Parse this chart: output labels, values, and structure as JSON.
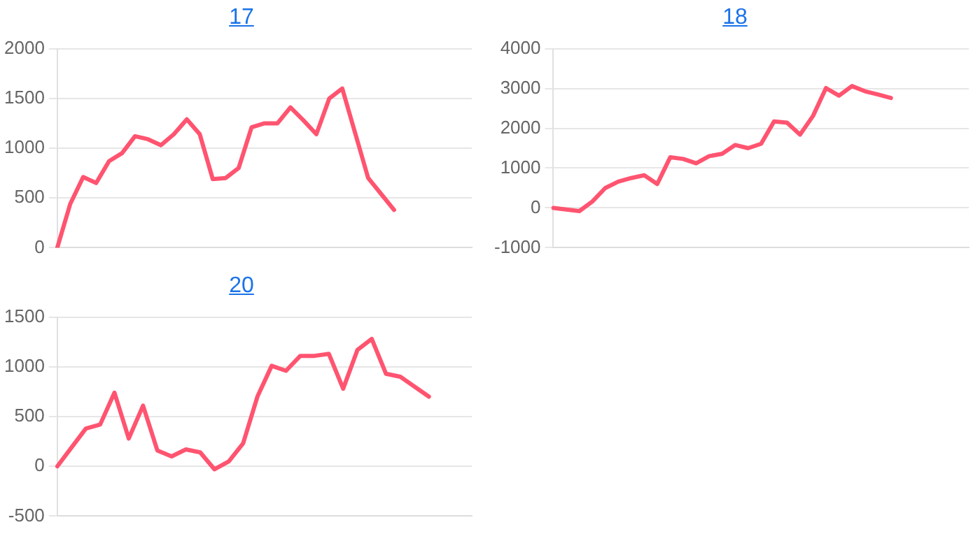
{
  "chart_data": [
    {
      "type": "line",
      "title": "17",
      "categories": [
        null,
        null,
        null,
        null,
        null,
        null,
        null,
        null,
        null,
        null,
        null,
        null,
        null,
        null,
        null,
        null,
        null,
        null,
        null,
        null,
        null,
        null,
        null,
        null,
        null,
        null,
        null,
        null,
        null,
        null,
        null,
        null,
        null
      ],
      "series": [
        {
          "color": "#ff5470",
          "values": [
            0,
            440,
            710,
            650,
            870,
            950,
            1120,
            1090,
            1030,
            1140,
            1290,
            1140,
            690,
            700,
            800,
            1210,
            1250,
            1250,
            1410,
            1280,
            1140,
            1500,
            1600,
            1150,
            700,
            540,
            380,
            null,
            null,
            null,
            null,
            null,
            null
          ]
        }
      ],
      "ylim": [
        0,
        2000
      ],
      "yticks": [
        0,
        500,
        1000,
        1500,
        2000
      ],
      "grid": "y",
      "tick_labels": "y",
      "marker": "none",
      "line_style": "solid",
      "legend": false
    },
    {
      "type": "line",
      "title": "18",
      "categories": [
        null,
        null,
        null,
        null,
        null,
        null,
        null,
        null,
        null,
        null,
        null,
        null,
        null,
        null,
        null,
        null,
        null,
        null,
        null,
        null,
        null,
        null,
        null,
        null,
        null,
        null,
        null,
        null,
        null,
        null,
        null,
        null,
        null
      ],
      "series": [
        {
          "color": "#ff5470",
          "values": [
            0,
            -40,
            -80,
            160,
            500,
            660,
            750,
            820,
            600,
            1270,
            1230,
            1120,
            1300,
            1360,
            1580,
            1500,
            1610,
            2170,
            2140,
            1840,
            2310,
            3010,
            2820,
            3060,
            2930,
            2850,
            2760,
            null,
            null,
            null,
            null,
            null,
            null
          ]
        }
      ],
      "ylim": [
        -1000,
        4000
      ],
      "yticks": [
        -1000,
        0,
        1000,
        2000,
        3000,
        4000
      ],
      "grid": "y",
      "tick_labels": "y",
      "marker": "none",
      "line_style": "solid",
      "legend": false
    },
    {
      "type": "line",
      "title": "20",
      "categories": [
        null,
        null,
        null,
        null,
        null,
        null,
        null,
        null,
        null,
        null,
        null,
        null,
        null,
        null,
        null,
        null,
        null,
        null,
        null,
        null,
        null,
        null,
        null,
        null,
        null,
        null,
        null,
        null,
        null,
        null
      ],
      "series": [
        {
          "color": "#ff5470",
          "values": [
            0,
            190,
            380,
            420,
            740,
            280,
            610,
            160,
            100,
            170,
            140,
            -30,
            50,
            230,
            700,
            1010,
            960,
            1110,
            1110,
            1130,
            780,
            1170,
            1280,
            930,
            900,
            800,
            700,
            null,
            null,
            null
          ]
        }
      ],
      "ylim": [
        -500,
        1500
      ],
      "yticks": [
        -500,
        0,
        500,
        1000,
        1500
      ],
      "grid": "y",
      "tick_labels": "y",
      "marker": "none",
      "line_style": "solid",
      "legend": false
    }
  ]
}
